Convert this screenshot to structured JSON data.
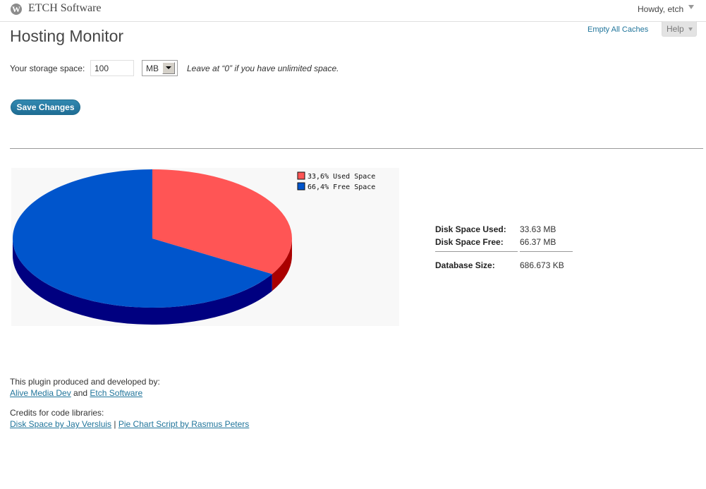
{
  "admin_bar": {
    "logo_glyph": "W",
    "site_name": "ETCH Software",
    "howdy": "Howdy, etch"
  },
  "header": {
    "title": "Hosting Monitor",
    "empty_caches": "Empty All Caches",
    "help": "Help"
  },
  "form": {
    "storage_label": "Your storage space:",
    "storage_value": "100",
    "unit": "MB",
    "hint": "Leave at “0” if you have unlimited space.",
    "save_label": "Save Changes"
  },
  "chart_data": {
    "type": "pie",
    "style": "3d",
    "slices": [
      {
        "legend": "33,6% Used Space",
        "value": 33.6,
        "color": "#ff5555",
        "side_color": "#aa0000"
      },
      {
        "legend": "66,4% Free Space",
        "value": 66.4,
        "color": "#0055cc",
        "side_color": "#000080"
      }
    ],
    "legend_position": "top-right"
  },
  "stats": {
    "disk_used_label": "Disk Space Used:",
    "disk_used_value": "33.63 MB",
    "disk_free_label": "Disk Space Free:",
    "disk_free_value": "66.37 MB",
    "db_label": "Database Size:",
    "db_value": "686.673 KB"
  },
  "footer": {
    "produced_by": "This plugin produced and developed by:",
    "dev1": "Alive Media Dev",
    "and": "and",
    "dev2": "Etch Software",
    "credits_label": "Credits for code libraries:",
    "lib1": "Disk Space by Jay Versluis",
    "separator": "|",
    "lib2": "Pie Chart Script by Rasmus Peters"
  },
  "colors": {
    "link": "#21759b",
    "button": "#21759b"
  }
}
